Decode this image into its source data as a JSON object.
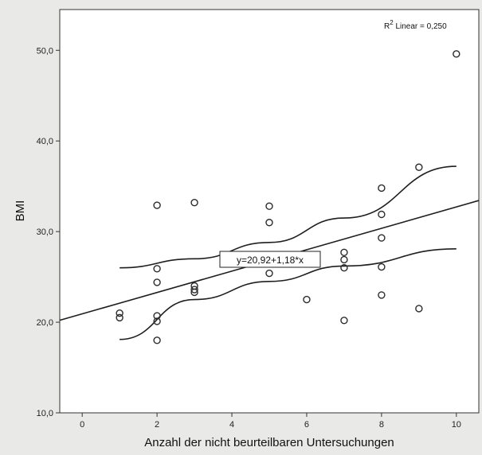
{
  "chart_data": {
    "type": "scatter",
    "xlabel": "Anzahl der nicht beurteilbaren Untersuchungen",
    "ylabel": "BMI",
    "xlim": [
      -0.6,
      10.6
    ],
    "ylim": [
      10,
      54.5
    ],
    "x_ticks": [
      {
        "value": 0,
        "label": "0"
      },
      {
        "value": 2,
        "label": "2"
      },
      {
        "value": 4,
        "label": "4"
      },
      {
        "value": 6,
        "label": "6"
      },
      {
        "value": 8,
        "label": "8"
      },
      {
        "value": 10,
        "label": "10"
      }
    ],
    "y_ticks": [
      {
        "value": 10,
        "label": "10,0"
      },
      {
        "value": 20,
        "label": "20,0"
      },
      {
        "value": 30,
        "label": "30,0"
      },
      {
        "value": 40,
        "label": "40,0"
      },
      {
        "value": 50,
        "label": "50,0"
      }
    ],
    "grid": false,
    "points": [
      {
        "x": 1,
        "y": 21.0
      },
      {
        "x": 1,
        "y": 20.5
      },
      {
        "x": 2,
        "y": 32.9
      },
      {
        "x": 2,
        "y": 25.9
      },
      {
        "x": 2,
        "y": 24.4
      },
      {
        "x": 2,
        "y": 20.7
      },
      {
        "x": 2,
        "y": 20.1
      },
      {
        "x": 2,
        "y": 18.0
      },
      {
        "x": 3,
        "y": 33.2
      },
      {
        "x": 3,
        "y": 24.0
      },
      {
        "x": 3,
        "y": 23.6
      },
      {
        "x": 3,
        "y": 23.3
      },
      {
        "x": 5,
        "y": 32.8
      },
      {
        "x": 5,
        "y": 31.0
      },
      {
        "x": 5,
        "y": 25.4
      },
      {
        "x": 6,
        "y": 22.5
      },
      {
        "x": 7,
        "y": 27.7
      },
      {
        "x": 7,
        "y": 26.9
      },
      {
        "x": 7,
        "y": 26.0
      },
      {
        "x": 7,
        "y": 20.2
      },
      {
        "x": 8,
        "y": 34.8
      },
      {
        "x": 8,
        "y": 31.9
      },
      {
        "x": 8,
        "y": 29.3
      },
      {
        "x": 8,
        "y": 26.1
      },
      {
        "x": 8,
        "y": 23.0
      },
      {
        "x": 9,
        "y": 37.1
      },
      {
        "x": 9,
        "y": 21.5
      },
      {
        "x": 10,
        "y": 49.6
      }
    ],
    "fit_line": {
      "intercept": 20.92,
      "slope": 1.18
    },
    "confidence_band": {
      "upper": [
        {
          "x": 1,
          "y": 26.0
        },
        {
          "x": 3,
          "y": 27.0
        },
        {
          "x": 5,
          "y": 28.8
        },
        {
          "x": 7,
          "y": 31.5
        },
        {
          "x": 10,
          "y": 37.2
        }
      ],
      "lower": [
        {
          "x": 1,
          "y": 18.1
        },
        {
          "x": 3,
          "y": 22.5
        },
        {
          "x": 5,
          "y": 24.5
        },
        {
          "x": 7,
          "y": 26.2
        },
        {
          "x": 10,
          "y": 28.1
        }
      ]
    },
    "equation_label": "y=20,92+1,18*x",
    "r2_label": {
      "prefix": "R",
      "superscript": "2",
      "text": " Linear = 0,250"
    }
  }
}
